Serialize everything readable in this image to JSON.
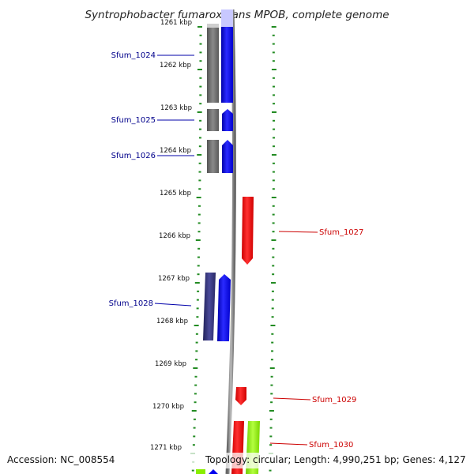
{
  "title": "Syntrophobacter fumaroxidans MPOB, complete genome",
  "footer": {
    "accession": "Accession: NC_008554",
    "topology": "Topology: circular; Length: 4,990,251 bp; Genes: 4,127"
  },
  "ticks": [
    "1261 kbp",
    "1262 kbp",
    "1263 kbp",
    "1264 kbp",
    "1265 kbp",
    "1266 kbp",
    "1267 kbp",
    "1268 kbp",
    "1269 kbp",
    "1270 kbp",
    "1271 kbp"
  ],
  "genes": [
    {
      "name": "Sfum_1024",
      "strand": "forward",
      "color": "#0000ee"
    },
    {
      "name": "Sfum_1025",
      "strand": "forward",
      "color": "#0000ee"
    },
    {
      "name": "Sfum_1026",
      "strand": "forward",
      "color": "#0000ee"
    },
    {
      "name": "Sfum_1027",
      "strand": "reverse",
      "color": "#ee0000"
    },
    {
      "name": "Sfum_1028",
      "strand": "forward",
      "color": "#0000ee"
    },
    {
      "name": "Sfum_1029",
      "strand": "reverse",
      "color": "#ee0000"
    },
    {
      "name": "Sfum_1030",
      "strand": "reverse",
      "color": "#ee0000"
    }
  ],
  "colors": {
    "forward_label": "#00008b",
    "reverse_label": "#cc0000",
    "backbone": "#888888",
    "tick_green": "#228b22",
    "cds_forward": "#0000ee",
    "cds_reverse": "#ee0000",
    "gene_gray": "#6e6e6e",
    "rna_green": "#88ee00"
  }
}
